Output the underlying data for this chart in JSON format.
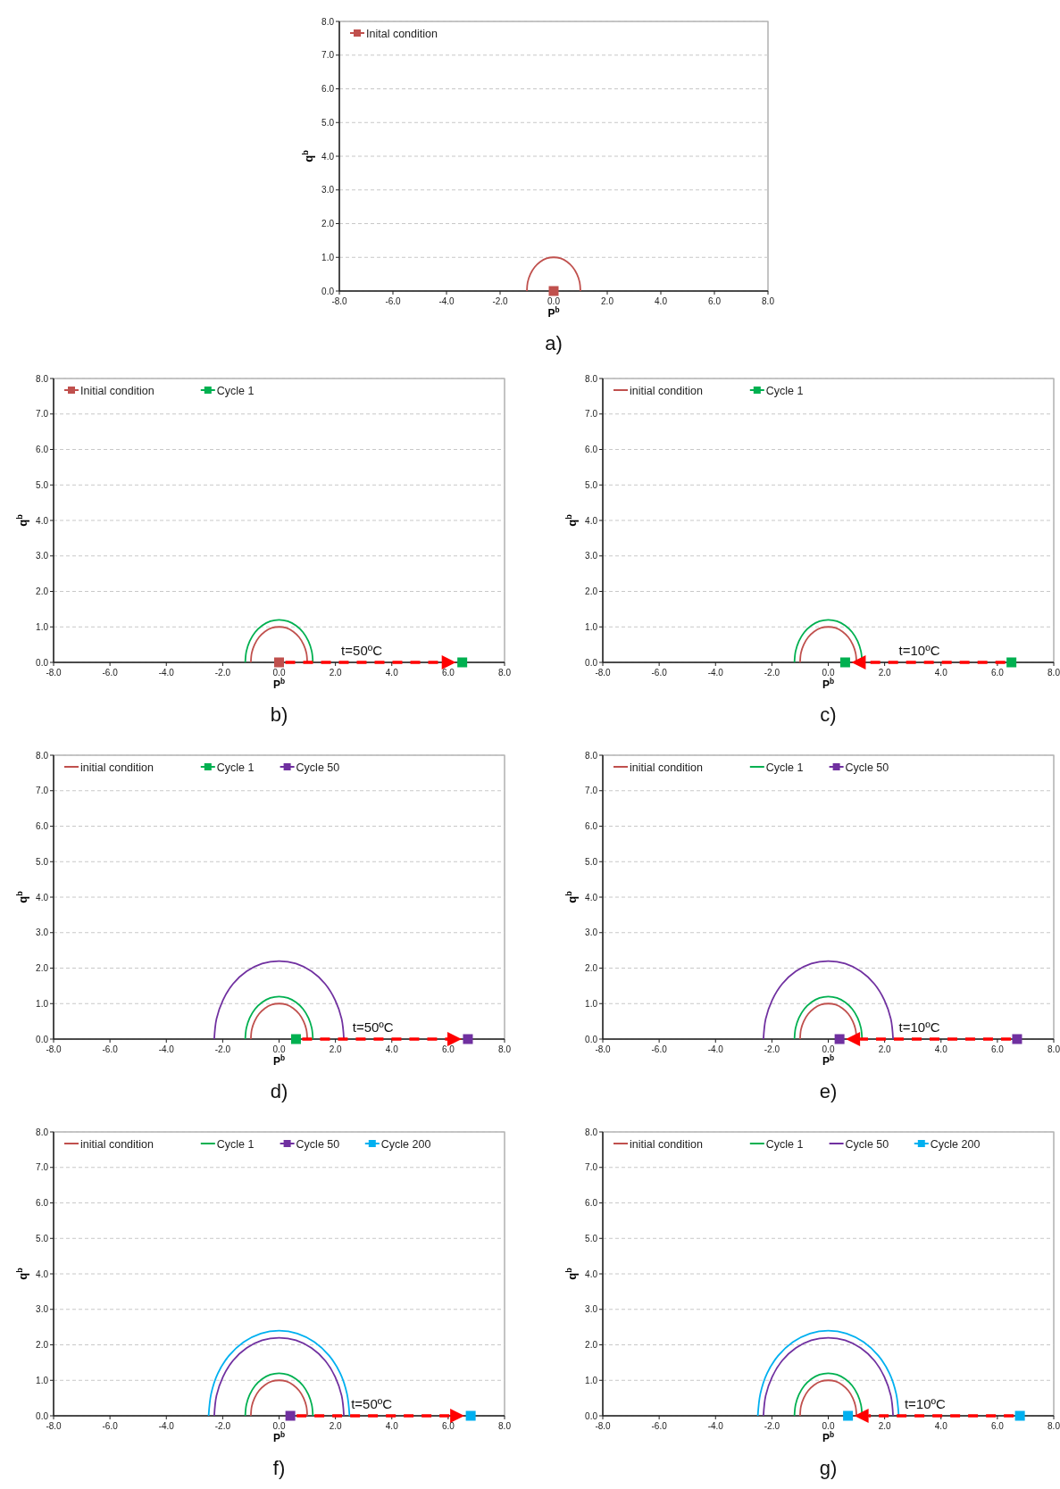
{
  "chart_data": [
    {
      "type": "line",
      "title": "a)",
      "xlabel": "P$^{b}$",
      "ylabel": "q$^{b}$",
      "xlim": [
        -8,
        8
      ],
      "ylim": [
        0,
        8
      ],
      "xticks": [
        {
          "value": -8,
          "label": "-8.0"
        },
        {
          "value": -6,
          "label": "-6.0"
        },
        {
          "value": -4,
          "label": "-4.0"
        },
        {
          "value": -2,
          "label": "-2.0"
        },
        {
          "value": 0,
          "label": "0.0"
        },
        {
          "value": 2,
          "label": "2.0"
        },
        {
          "value": 4,
          "label": "4.0"
        },
        {
          "value": 6,
          "label": "6.0"
        },
        {
          "value": 8,
          "label": "8.0"
        }
      ],
      "yticks": [
        {
          "value": 0,
          "label": "0.0"
        },
        {
          "value": 1,
          "label": "1.0"
        },
        {
          "value": 2,
          "label": "2.0"
        },
        {
          "value": 3,
          "label": "3.0"
        },
        {
          "value": 4,
          "label": "4.0"
        },
        {
          "value": 5,
          "label": "5.0"
        },
        {
          "value": 6,
          "label": "6.0"
        },
        {
          "value": 7,
          "label": "7.0"
        },
        {
          "value": 8,
          "label": "8.0"
        }
      ],
      "grid": "y",
      "legend": "top left",
      "series": [
        {
          "name": "Inital condition",
          "color": "#c0504d",
          "x": [
            -1,
            -0.97,
            -0.87,
            -0.71,
            -0.5,
            -0.26,
            0,
            0.26,
            0.5,
            0.71,
            0.87,
            0.97,
            1
          ],
          "values": [
            0,
            0.26,
            0.5,
            0.71,
            0.87,
            0.97,
            1,
            0.97,
            0.87,
            0.71,
            0.5,
            0.26,
            0
          ]
        },
        {
          "type": "scatter",
          "marker": "square",
          "color": "#c0504d",
          "x": [
            0
          ],
          "values": [
            0
          ]
        }
      ]
    },
    {
      "type": "line",
      "title": "b)",
      "xlabel": "P$^{b}$",
      "ylabel": "q$^{b}$",
      "xlim": [
        -8,
        8
      ],
      "ylim": [
        0,
        8
      ],
      "xticks": [
        {
          "value": -8,
          "label": "-8.0"
        },
        {
          "value": -6,
          "label": "-6.0"
        },
        {
          "value": -4,
          "label": "-4.0"
        },
        {
          "value": -2,
          "label": "-2.0"
        },
        {
          "value": 0,
          "label": "0.0"
        },
        {
          "value": 2,
          "label": "2.0"
        },
        {
          "value": 4,
          "label": "4.0"
        },
        {
          "value": 6,
          "label": "6.0"
        },
        {
          "value": 8,
          "label": "8.0"
        }
      ],
      "yticks": [
        {
          "value": 0,
          "label": "0.0"
        },
        {
          "value": 1,
          "label": "1.0"
        },
        {
          "value": 2,
          "label": "2.0"
        },
        {
          "value": 3,
          "label": "3.0"
        },
        {
          "value": 4,
          "label": "4.0"
        },
        {
          "value": 5,
          "label": "5.0"
        },
        {
          "value": 6,
          "label": "6.0"
        },
        {
          "value": 7,
          "label": "7.0"
        },
        {
          "value": 8,
          "label": "8.0"
        }
      ],
      "grid": "y",
      "legend": "top left",
      "annotations": [
        "t=50ºC"
      ],
      "series": [
        {
          "name": "Initial condition",
          "color": "#c0504d",
          "x": [
            -1,
            -0.97,
            -0.87,
            -0.71,
            -0.5,
            -0.26,
            0,
            0.26,
            0.5,
            0.71,
            0.87,
            0.97,
            1
          ],
          "values": [
            0,
            0.26,
            0.5,
            0.71,
            0.87,
            0.97,
            1,
            0.97,
            0.87,
            0.71,
            0.5,
            0.26,
            0
          ]
        },
        {
          "name": "Cycle 1",
          "color": "#00b050",
          "x": [
            -1.2,
            -1.16,
            -1.04,
            -0.85,
            -0.6,
            -0.31,
            0,
            0.31,
            0.6,
            0.85,
            1.04,
            1.16,
            1.2
          ],
          "values": [
            0,
            0.31,
            0.6,
            0.85,
            1.04,
            1.16,
            1.2,
            1.16,
            1.04,
            0.85,
            0.6,
            0.31,
            0
          ]
        },
        {
          "type": "scatter",
          "marker": "square",
          "color": "#c0504d",
          "x": [
            0
          ],
          "values": [
            0
          ]
        },
        {
          "type": "scatter",
          "marker": "square",
          "color": "#00b050",
          "x": [
            6.5
          ],
          "values": [
            0
          ]
        }
      ]
    },
    {
      "type": "line",
      "title": "c)",
      "xlabel": "P$^{b}$",
      "ylabel": "q$^{b}$",
      "xlim": [
        -8,
        8
      ],
      "ylim": [
        0,
        8
      ],
      "xticks": [
        {
          "value": -8,
          "label": "-8.0"
        },
        {
          "value": -6,
          "label": "-6.0"
        },
        {
          "value": -4,
          "label": "-4.0"
        },
        {
          "value": -2,
          "label": "-2.0"
        },
        {
          "value": 0,
          "label": "0.0"
        },
        {
          "value": 2,
          "label": "2.0"
        },
        {
          "value": 4,
          "label": "4.0"
        },
        {
          "value": 6,
          "label": "6.0"
        },
        {
          "value": 8,
          "label": "8.0"
        }
      ],
      "yticks": [
        {
          "value": 0,
          "label": "0.0"
        },
        {
          "value": 1,
          "label": "1.0"
        },
        {
          "value": 2,
          "label": "2.0"
        },
        {
          "value": 3,
          "label": "3.0"
        },
        {
          "value": 4,
          "label": "4.0"
        },
        {
          "value": 5,
          "label": "5.0"
        },
        {
          "value": 6,
          "label": "6.0"
        },
        {
          "value": 7,
          "label": "7.0"
        },
        {
          "value": 8,
          "label": "8.0"
        }
      ],
      "grid": "y",
      "legend": "top left",
      "annotations": [
        "t=10ºC"
      ],
      "series": [
        {
          "name": "initial condition",
          "color": "#c0504d",
          "x": [
            -1,
            -0.97,
            -0.87,
            -0.71,
            -0.5,
            -0.26,
            0,
            0.26,
            0.5,
            0.71,
            0.87,
            0.97,
            1
          ],
          "values": [
            0,
            0.26,
            0.5,
            0.71,
            0.87,
            0.97,
            1,
            0.97,
            0.87,
            0.71,
            0.5,
            0.26,
            0
          ]
        },
        {
          "name": "Cycle 1",
          "color": "#00b050",
          "x": [
            -1.2,
            -1.16,
            -1.04,
            -0.85,
            -0.6,
            -0.31,
            0,
            0.31,
            0.6,
            0.85,
            1.04,
            1.16,
            1.2
          ],
          "values": [
            0,
            0.31,
            0.6,
            0.85,
            1.04,
            1.16,
            1.2,
            1.16,
            1.04,
            0.85,
            0.6,
            0.31,
            0
          ]
        },
        {
          "type": "scatter",
          "marker": "square",
          "color": "#00b050",
          "x": [
            6.5,
            0.6
          ],
          "values": [
            0,
            0
          ]
        }
      ]
    },
    {
      "type": "line",
      "title": "d)",
      "xlabel": "P$^{b}$",
      "ylabel": "q$^{b}$",
      "xlim": [
        -8,
        8
      ],
      "ylim": [
        0,
        8
      ],
      "xticks": [
        {
          "value": -8,
          "label": "-8.0"
        },
        {
          "value": -6,
          "label": "-6.0"
        },
        {
          "value": -4,
          "label": "-4.0"
        },
        {
          "value": -2,
          "label": "-2.0"
        },
        {
          "value": 0,
          "label": "0.0"
        },
        {
          "value": 2,
          "label": "2.0"
        },
        {
          "value": 4,
          "label": "4.0"
        },
        {
          "value": 6,
          "label": "6.0"
        },
        {
          "value": 8,
          "label": "8.0"
        }
      ],
      "yticks": [
        {
          "value": 0,
          "label": "0.0"
        },
        {
          "value": 1,
          "label": "1.0"
        },
        {
          "value": 2,
          "label": "2.0"
        },
        {
          "value": 3,
          "label": "3.0"
        },
        {
          "value": 4,
          "label": "4.0"
        },
        {
          "value": 5,
          "label": "5.0"
        },
        {
          "value": 6,
          "label": "6.0"
        },
        {
          "value": 7,
          "label": "7.0"
        },
        {
          "value": 8,
          "label": "8.0"
        }
      ],
      "grid": "y",
      "legend": "top left",
      "annotations": [
        "t=50ºC"
      ],
      "series": [
        {
          "name": "initial condition",
          "color": "#c0504d",
          "x": [
            -1,
            -0.97,
            -0.87,
            -0.71,
            -0.5,
            -0.26,
            0,
            0.26,
            0.5,
            0.71,
            0.87,
            0.97,
            1
          ],
          "values": [
            0,
            0.26,
            0.5,
            0.71,
            0.87,
            0.97,
            1,
            0.97,
            0.87,
            0.71,
            0.5,
            0.26,
            0
          ]
        },
        {
          "name": "Cycle 1",
          "color": "#00b050",
          "x": [
            -1.2,
            -1.16,
            -1.04,
            -0.85,
            -0.6,
            -0.31,
            0,
            0.31,
            0.6,
            0.85,
            1.04,
            1.16,
            1.2
          ],
          "values": [
            0,
            0.31,
            0.6,
            0.85,
            1.04,
            1.16,
            1.2,
            1.16,
            1.04,
            0.85,
            0.6,
            0.31,
            0
          ]
        },
        {
          "name": "Cycle 50",
          "color": "#7030a0",
          "x": [
            -2.3,
            -2.22,
            -1.99,
            -1.63,
            -1.15,
            -0.6,
            0,
            0.6,
            1.15,
            1.63,
            1.99,
            2.22,
            2.3
          ],
          "values": [
            0,
            0.57,
            1.1,
            1.56,
            1.91,
            2.13,
            2.2,
            2.13,
            1.91,
            1.56,
            1.1,
            0.57,
            0
          ]
        },
        {
          "type": "scatter",
          "marker": "square",
          "color": "#00b050",
          "x": [
            0.6
          ],
          "values": [
            0
          ]
        },
        {
          "type": "scatter",
          "marker": "square",
          "color": "#7030a0",
          "x": [
            6.7
          ],
          "values": [
            0
          ]
        }
      ]
    },
    {
      "type": "line",
      "title": "e)",
      "xlabel": "P$^{b}$",
      "ylabel": "q$^{b}$",
      "xlim": [
        -8,
        8
      ],
      "ylim": [
        0,
        8
      ],
      "xticks": [
        {
          "value": -8,
          "label": "-8.0"
        },
        {
          "value": -6,
          "label": "-6.0"
        },
        {
          "value": -4,
          "label": "-4.0"
        },
        {
          "value": -2,
          "label": "-2.0"
        },
        {
          "value": 0,
          "label": "0.0"
        },
        {
          "value": 2,
          "label": "2.0"
        },
        {
          "value": 4,
          "label": "4.0"
        },
        {
          "value": 6,
          "label": "6.0"
        },
        {
          "value": 8,
          "label": "8.0"
        }
      ],
      "yticks": [
        {
          "value": 0,
          "label": "0.0"
        },
        {
          "value": 1,
          "label": "1.0"
        },
        {
          "value": 2,
          "label": "2.0"
        },
        {
          "value": 3,
          "label": "3.0"
        },
        {
          "value": 4,
          "label": "4.0"
        },
        {
          "value": 5,
          "label": "5.0"
        },
        {
          "value": 6,
          "label": "6.0"
        },
        {
          "value": 7,
          "label": "7.0"
        },
        {
          "value": 8,
          "label": "8.0"
        }
      ],
      "grid": "y",
      "legend": "top left",
      "annotations": [
        "t=10ºC"
      ],
      "series": [
        {
          "name": "initial condition",
          "color": "#c0504d",
          "x": [
            -1,
            -0.97,
            -0.87,
            -0.71,
            -0.5,
            -0.26,
            0,
            0.26,
            0.5,
            0.71,
            0.87,
            0.97,
            1
          ],
          "values": [
            0,
            0.26,
            0.5,
            0.71,
            0.87,
            0.97,
            1,
            0.97,
            0.87,
            0.71,
            0.5,
            0.26,
            0
          ]
        },
        {
          "name": "Cycle 1",
          "color": "#00b050",
          "x": [
            -1.2,
            -1.16,
            -1.04,
            -0.85,
            -0.6,
            -0.31,
            0,
            0.31,
            0.6,
            0.85,
            1.04,
            1.16,
            1.2
          ],
          "values": [
            0,
            0.31,
            0.6,
            0.85,
            1.04,
            1.16,
            1.2,
            1.16,
            1.04,
            0.85,
            0.6,
            0.31,
            0
          ]
        },
        {
          "name": "Cycle 50",
          "color": "#7030a0",
          "x": [
            -2.3,
            -2.22,
            -1.99,
            -1.63,
            -1.15,
            -0.6,
            0,
            0.6,
            1.15,
            1.63,
            1.99,
            2.22,
            2.3
          ],
          "values": [
            0,
            0.57,
            1.1,
            1.56,
            1.91,
            2.13,
            2.2,
            2.13,
            1.91,
            1.56,
            1.1,
            0.57,
            0
          ]
        },
        {
          "type": "scatter",
          "marker": "square",
          "color": "#7030a0",
          "x": [
            6.7,
            0.4
          ],
          "values": [
            0,
            0
          ]
        }
      ]
    },
    {
      "type": "line",
      "title": "f)",
      "xlabel": "P$^{b}$",
      "ylabel": "q$^{b}$",
      "xlim": [
        -8,
        8
      ],
      "ylim": [
        0,
        8
      ],
      "xticks": [
        {
          "value": -8,
          "label": "-8.0"
        },
        {
          "value": -6,
          "label": "-6.0"
        },
        {
          "value": -4,
          "label": "-4.0"
        },
        {
          "value": -2,
          "label": "-2.0"
        },
        {
          "value": 0,
          "label": "0.0"
        },
        {
          "value": 2,
          "label": "2.0"
        },
        {
          "value": 4,
          "label": "4.0"
        },
        {
          "value": 6,
          "label": "6.0"
        },
        {
          "value": 8,
          "label": "8.0"
        }
      ],
      "yticks": [
        {
          "value": 0,
          "label": "0.0"
        },
        {
          "value": 1,
          "label": "1.0"
        },
        {
          "value": 2,
          "label": "2.0"
        },
        {
          "value": 3,
          "label": "3.0"
        },
        {
          "value": 4,
          "label": "4.0"
        },
        {
          "value": 5,
          "label": "5.0"
        },
        {
          "value": 6,
          "label": "6.0"
        },
        {
          "value": 7,
          "label": "7.0"
        },
        {
          "value": 8,
          "label": "8.0"
        }
      ],
      "grid": "y",
      "legend": "top left",
      "annotations": [
        "t=50ºC"
      ],
      "series": [
        {
          "name": "initial condition",
          "color": "#c0504d",
          "x": [
            -1,
            -0.97,
            -0.87,
            -0.71,
            -0.5,
            -0.26,
            0,
            0.26,
            0.5,
            0.71,
            0.87,
            0.97,
            1
          ],
          "values": [
            0,
            0.26,
            0.5,
            0.71,
            0.87,
            0.97,
            1,
            0.97,
            0.87,
            0.71,
            0.5,
            0.26,
            0
          ]
        },
        {
          "name": "Cycle 1",
          "color": "#00b050",
          "x": [
            -1.2,
            -1.16,
            -1.04,
            -0.85,
            -0.6,
            -0.31,
            0,
            0.31,
            0.6,
            0.85,
            1.04,
            1.16,
            1.2
          ],
          "values": [
            0,
            0.31,
            0.6,
            0.85,
            1.04,
            1.16,
            1.2,
            1.16,
            1.04,
            0.85,
            0.6,
            0.31,
            0
          ]
        },
        {
          "name": "Cycle 50",
          "color": "#7030a0",
          "x": [
            -2.3,
            -2.22,
            -1.99,
            -1.63,
            -1.15,
            -0.6,
            0,
            0.6,
            1.15,
            1.63,
            1.99,
            2.22,
            2.3
          ],
          "values": [
            0,
            0.57,
            1.1,
            1.56,
            1.91,
            2.13,
            2.2,
            2.13,
            1.91,
            1.56,
            1.1,
            0.57,
            0
          ]
        },
        {
          "name": "Cycle 200",
          "color": "#00b0f0",
          "x": [
            -2.5,
            -2.41,
            -2.17,
            -1.77,
            -1.25,
            -0.65,
            0,
            0.65,
            1.25,
            1.77,
            2.17,
            2.41,
            2.5
          ],
          "values": [
            0,
            0.62,
            1.2,
            1.7,
            2.08,
            2.32,
            2.4,
            2.32,
            2.08,
            1.7,
            1.2,
            0.62,
            0
          ]
        },
        {
          "type": "scatter",
          "marker": "square",
          "color": "#7030a0",
          "x": [
            0.4
          ],
          "values": [
            0
          ]
        },
        {
          "type": "scatter",
          "marker": "square",
          "color": "#00b0f0",
          "x": [
            6.8
          ],
          "values": [
            0
          ]
        }
      ]
    },
    {
      "type": "line",
      "title": "g)",
      "xlabel": "P$^{b}$",
      "ylabel": "q$^{b}$",
      "xlim": [
        -8,
        8
      ],
      "ylim": [
        0,
        8
      ],
      "xticks": [
        {
          "value": -8,
          "label": "-8.0"
        },
        {
          "value": -6,
          "label": "-6.0"
        },
        {
          "value": -4,
          "label": "-4.0"
        },
        {
          "value": -2,
          "label": "-2.0"
        },
        {
          "value": 0,
          "label": "0.0"
        },
        {
          "value": 2,
          "label": "2.0"
        },
        {
          "value": 4,
          "label": "4.0"
        },
        {
          "value": 6,
          "label": "6.0"
        },
        {
          "value": 8,
          "label": "8.0"
        }
      ],
      "yticks": [
        {
          "value": 0,
          "label": "0.0"
        },
        {
          "value": 1,
          "label": "1.0"
        },
        {
          "value": 2,
          "label": "2.0"
        },
        {
          "value": 3,
          "label": "3.0"
        },
        {
          "value": 4,
          "label": "4.0"
        },
        {
          "value": 5,
          "label": "5.0"
        },
        {
          "value": 6,
          "label": "6.0"
        },
        {
          "value": 7,
          "label": "7.0"
        },
        {
          "value": 8,
          "label": "8.0"
        }
      ],
      "grid": "y",
      "legend": "top left",
      "annotations": [
        "t=10ºC"
      ],
      "series": [
        {
          "name": "initial condition",
          "color": "#c0504d",
          "x": [
            -1,
            -0.97,
            -0.87,
            -0.71,
            -0.5,
            -0.26,
            0,
            0.26,
            0.5,
            0.71,
            0.87,
            0.97,
            1
          ],
          "values": [
            0,
            0.26,
            0.5,
            0.71,
            0.87,
            0.97,
            1,
            0.97,
            0.87,
            0.71,
            0.5,
            0.26,
            0
          ]
        },
        {
          "name": "Cycle 1",
          "color": "#00b050",
          "x": [
            -1.2,
            -1.16,
            -1.04,
            -0.85,
            -0.6,
            -0.31,
            0,
            0.31,
            0.6,
            0.85,
            1.04,
            1.16,
            1.2
          ],
          "values": [
            0,
            0.31,
            0.6,
            0.85,
            1.04,
            1.16,
            1.2,
            1.16,
            1.04,
            0.85,
            0.6,
            0.31,
            0
          ]
        },
        {
          "name": "Cycle 50",
          "color": "#7030a0",
          "x": [
            -2.3,
            -2.22,
            -1.99,
            -1.63,
            -1.15,
            -0.6,
            0,
            0.6,
            1.15,
            1.63,
            1.99,
            2.22,
            2.3
          ],
          "values": [
            0,
            0.57,
            1.1,
            1.56,
            1.91,
            2.13,
            2.2,
            2.13,
            1.91,
            1.56,
            1.1,
            0.57,
            0
          ]
        },
        {
          "name": "Cycle 200",
          "color": "#00b0f0",
          "x": [
            -2.5,
            -2.41,
            -2.17,
            -1.77,
            -1.25,
            -0.65,
            0,
            0.65,
            1.25,
            1.77,
            2.17,
            2.41,
            2.5
          ],
          "values": [
            0,
            0.62,
            1.2,
            1.7,
            2.08,
            2.32,
            2.4,
            2.32,
            2.08,
            1.7,
            1.2,
            0.62,
            0
          ]
        },
        {
          "type": "scatter",
          "marker": "square",
          "color": "#00b0f0",
          "x": [
            6.8,
            0.7
          ],
          "values": [
            0,
            0
          ]
        }
      ]
    }
  ]
}
